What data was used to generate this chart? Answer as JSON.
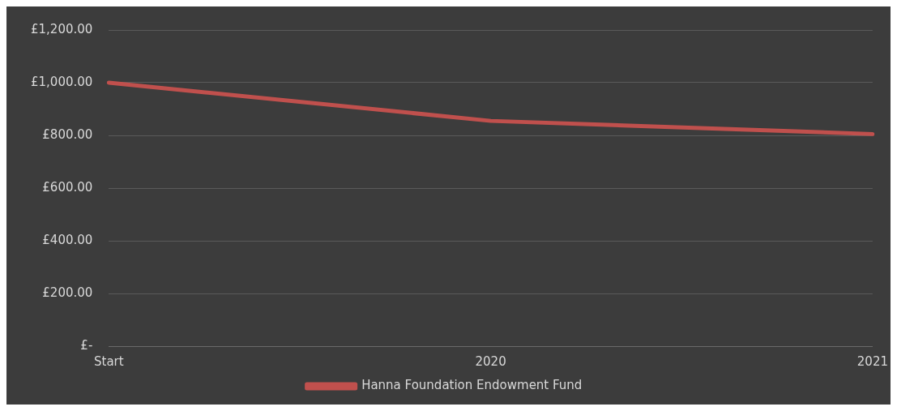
{
  "chart_data": {
    "type": "line",
    "categories": [
      "Start",
      "2020",
      "2021"
    ],
    "series": [
      {
        "name": "Hanna Foundation Endowment Fund",
        "color": "#c0504d",
        "values": [
          1000,
          855,
          805
        ]
      }
    ],
    "ylim": [
      0,
      1200
    ],
    "yticks": [
      {
        "value": 0,
        "label": "£-"
      },
      {
        "value": 200,
        "label": "£200.00"
      },
      {
        "value": 400,
        "label": "£400.00"
      },
      {
        "value": 600,
        "label": "£600.00"
      },
      {
        "value": 800,
        "label": "£800.00"
      },
      {
        "value": 1000,
        "label": "£1,000.00"
      },
      {
        "value": 1200,
        "label": "£1,200.00"
      }
    ],
    "grid": "y",
    "legend": "bottom",
    "marker": "none",
    "line_style": "solid"
  }
}
